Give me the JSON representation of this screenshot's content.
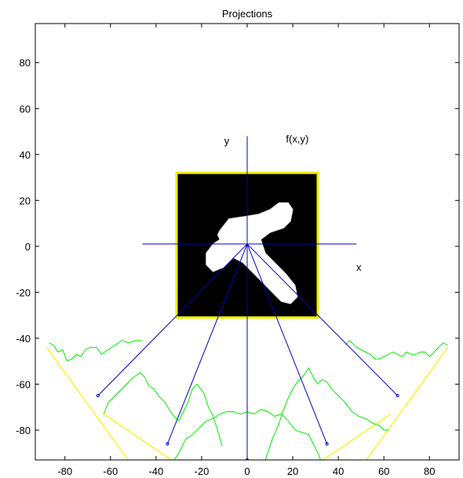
{
  "chart_data": {
    "type": "line",
    "title": "Projections",
    "xlabel": "",
    "ylabel": "",
    "xlim": [
      -93,
      93
    ],
    "ylim": [
      -93,
      97
    ],
    "xticks": [
      -80,
      -60,
      -40,
      -20,
      0,
      20,
      40,
      60,
      80
    ],
    "yticks": [
      -80,
      -60,
      -40,
      -20,
      0,
      20,
      40,
      60,
      80
    ],
    "grid": false,
    "annotations": [
      {
        "text": "y",
        "x": -9,
        "y": 46
      },
      {
        "text": "f(x,y)",
        "x": 22,
        "y": 47
      },
      {
        "text": "x",
        "x": 49,
        "y": -9
      }
    ],
    "colors": {
      "axes_lines": "#0000cc",
      "projection_lines": "#ffee00",
      "profiles": "#00ee00",
      "image_border": "#eeee00",
      "image_background": "#000000",
      "shape": "#ffffff"
    },
    "image_extent": {
      "x": [
        -31,
        31
      ],
      "y": [
        -31,
        32
      ]
    },
    "center": [
      0,
      1
    ],
    "axis_lines": {
      "vertical_x": 0,
      "vertical_y_range": [
        -92,
        48
      ],
      "horizontal_y": 1,
      "horizontal_x_range": [
        -46,
        48
      ]
    },
    "rays": [
      {
        "to": [
          -65.5,
          -65
        ]
      },
      {
        "to": [
          -35,
          -86
        ]
      },
      {
        "to": [
          0,
          -93
        ]
      },
      {
        "to": [
          35,
          -86
        ]
      },
      {
        "to": [
          66,
          -65
        ]
      }
    ],
    "projection_segments": [
      {
        "from": [
          -88,
          -44
        ],
        "to": [
          -45,
          -103
        ]
      },
      {
        "from": [
          -63,
          -73
        ],
        "to": [
          -8,
          -110
        ]
      },
      {
        "from": [
          -35,
          -93
        ],
        "to": [
          35,
          -93
        ]
      },
      {
        "from": [
          8,
          -110
        ],
        "to": [
          63,
          -73
        ]
      },
      {
        "from": [
          45,
          -103
        ],
        "to": [
          88,
          -44
        ]
      }
    ],
    "profiles": [
      {
        "name": "",
        "points": [
          [
            -87,
            -42
          ],
          [
            -85,
            -43
          ],
          [
            -83,
            -46
          ],
          [
            -81,
            -45
          ],
          [
            -79,
            -50
          ],
          [
            -77,
            -49
          ],
          [
            -75,
            -47
          ],
          [
            -73,
            -48
          ],
          [
            -71,
            -45
          ],
          [
            -69,
            -44
          ],
          [
            -66,
            -44
          ],
          [
            -64,
            -47
          ],
          [
            -61,
            -45
          ],
          [
            -58,
            -43
          ],
          [
            -55,
            -41
          ],
          [
            -52,
            -42
          ],
          [
            -49,
            -41
          ],
          [
            -46,
            -41
          ]
        ]
      },
      {
        "name": "",
        "points": [
          [
            -63,
            -73
          ],
          [
            -61,
            -68
          ],
          [
            -58,
            -65
          ],
          [
            -54,
            -61
          ],
          [
            -50,
            -57
          ],
          [
            -47,
            -55
          ],
          [
            -45,
            -57
          ],
          [
            -43,
            -61
          ],
          [
            -41,
            -62
          ],
          [
            -39,
            -65
          ],
          [
            -36,
            -68
          ],
          [
            -33,
            -73
          ],
          [
            -30,
            -76
          ],
          [
            -28,
            -72
          ],
          [
            -26,
            -68
          ],
          [
            -24,
            -62
          ],
          [
            -22,
            -60
          ],
          [
            -19,
            -64
          ],
          [
            -17,
            -70
          ],
          [
            -15,
            -74
          ],
          [
            -13,
            -80
          ],
          [
            -11,
            -87
          ]
        ]
      },
      {
        "name": "",
        "points": [
          [
            -34,
            -99
          ],
          [
            -32,
            -93
          ],
          [
            -30,
            -90
          ],
          [
            -27,
            -84
          ],
          [
            -24,
            -82
          ],
          [
            -21,
            -79
          ],
          [
            -18,
            -76
          ],
          [
            -15,
            -75
          ],
          [
            -12,
            -73
          ],
          [
            -9,
            -72
          ],
          [
            -6,
            -72
          ],
          [
            -3,
            -73
          ],
          [
            0,
            -72
          ],
          [
            3,
            -73
          ],
          [
            6,
            -71
          ],
          [
            9,
            -72
          ],
          [
            12,
            -74
          ],
          [
            15,
            -73
          ],
          [
            18,
            -76
          ],
          [
            21,
            -80
          ],
          [
            24,
            -81
          ],
          [
            27,
            -82
          ],
          [
            29,
            -86
          ],
          [
            31,
            -90
          ],
          [
            33,
            -95
          ],
          [
            35,
            -99
          ]
        ]
      },
      {
        "name": "",
        "points": [
          [
            8,
            -93
          ],
          [
            11,
            -84
          ],
          [
            14,
            -77
          ],
          [
            16,
            -71
          ],
          [
            18,
            -66
          ],
          [
            20,
            -62
          ],
          [
            22,
            -59
          ],
          [
            25,
            -56
          ],
          [
            27,
            -53
          ],
          [
            29,
            -57
          ],
          [
            31,
            -60
          ],
          [
            33,
            -58
          ],
          [
            35,
            -59
          ],
          [
            37,
            -62
          ],
          [
            40,
            -65
          ],
          [
            43,
            -68
          ],
          [
            46,
            -72
          ],
          [
            49,
            -74
          ],
          [
            52,
            -75
          ],
          [
            55,
            -77
          ],
          [
            58,
            -78
          ],
          [
            60,
            -80
          ],
          [
            62,
            -80
          ]
        ]
      },
      {
        "name": "",
        "points": [
          [
            43,
            -43
          ],
          [
            45,
            -41
          ],
          [
            48,
            -44
          ],
          [
            50,
            -45
          ],
          [
            52,
            -46
          ],
          [
            54,
            -47
          ],
          [
            56,
            -49
          ],
          [
            58,
            -49
          ],
          [
            60,
            -48
          ],
          [
            62,
            -47
          ],
          [
            64,
            -46
          ],
          [
            66,
            -47
          ],
          [
            68,
            -48
          ],
          [
            70,
            -46
          ],
          [
            72,
            -47
          ],
          [
            74,
            -47
          ],
          [
            76,
            -46
          ],
          [
            78,
            -46
          ],
          [
            80,
            -48
          ],
          [
            82,
            -46
          ],
          [
            84,
            -44
          ],
          [
            86,
            -42
          ],
          [
            88,
            -43
          ]
        ]
      }
    ]
  }
}
